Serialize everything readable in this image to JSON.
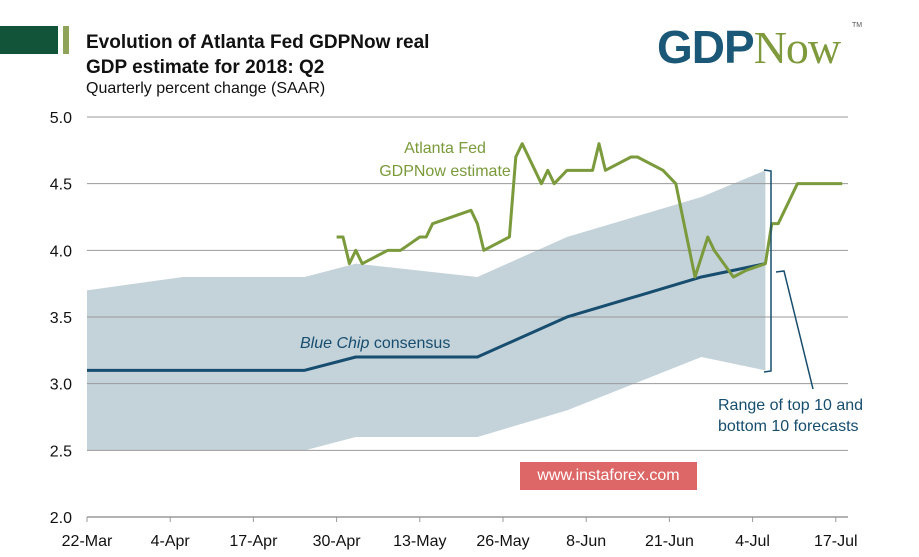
{
  "header": {
    "title_line1": "Evolution of Atlanta Fed GDPNow real",
    "title_line2": "GDP estimate for 2018: Q2",
    "subtitle": "Quarterly percent change (SAAR)",
    "logo_text": "GDPNow",
    "logo_tm": "TM"
  },
  "watermark": "www.instaforex.com",
  "colors": {
    "gdpnow": "#7a9a3c",
    "bluechip": "#174d6e",
    "band": "#c4d2da",
    "grid": "#9a9a9a",
    "brand_green": "#12543a"
  },
  "chart_data": {
    "type": "line",
    "title": "Evolution of Atlanta Fed GDPNow real GDP estimate for 2018: Q2",
    "ylabel": "Quarterly percent change (SAAR)",
    "ylim": [
      2.0,
      5.0
    ],
    "yticks": [
      "2.0",
      "2.5",
      "3.0",
      "3.5",
      "4.0",
      "4.5",
      "5.0"
    ],
    "xlim": [
      "2018-03-22",
      "2018-07-19"
    ],
    "xticks": [
      {
        "date": "2018-03-22",
        "label": "22-Mar"
      },
      {
        "date": "2018-04-04",
        "label": "4-Apr"
      },
      {
        "date": "2018-04-17",
        "label": "17-Apr"
      },
      {
        "date": "2018-04-30",
        "label": "30-Apr"
      },
      {
        "date": "2018-05-13",
        "label": "13-May"
      },
      {
        "date": "2018-05-26",
        "label": "26-May"
      },
      {
        "date": "2018-06-08",
        "label": "8-Jun"
      },
      {
        "date": "2018-06-21",
        "label": "21-Jun"
      },
      {
        "date": "2018-07-04",
        "label": "4-Jul"
      },
      {
        "date": "2018-07-17",
        "label": "17-Jul"
      }
    ],
    "grid": true,
    "series": [
      {
        "name": "Atlanta Fed GDPNow estimate",
        "points": [
          [
            "2018-04-30",
            4.1
          ],
          [
            "2018-05-01",
            4.1
          ],
          [
            "2018-05-02",
            3.9
          ],
          [
            "2018-05-03",
            4.0
          ],
          [
            "2018-05-04",
            3.9
          ],
          [
            "2018-05-08",
            4.0
          ],
          [
            "2018-05-10",
            4.0
          ],
          [
            "2018-05-13",
            4.1
          ],
          [
            "2018-05-14",
            4.1
          ],
          [
            "2018-05-15",
            4.2
          ],
          [
            "2018-05-21",
            4.3
          ],
          [
            "2018-05-22",
            4.2
          ],
          [
            "2018-05-23",
            4.0
          ],
          [
            "2018-05-27",
            4.1
          ],
          [
            "2018-05-28",
            4.7
          ],
          [
            "2018-05-29",
            4.8
          ],
          [
            "2018-06-01",
            4.5
          ],
          [
            "2018-06-02",
            4.6
          ],
          [
            "2018-06-03",
            4.5
          ],
          [
            "2018-06-05",
            4.6
          ],
          [
            "2018-06-09",
            4.6
          ],
          [
            "2018-06-10",
            4.8
          ],
          [
            "2018-06-11",
            4.6
          ],
          [
            "2018-06-15",
            4.7
          ],
          [
            "2018-06-16",
            4.7
          ],
          [
            "2018-06-20",
            4.6
          ],
          [
            "2018-06-22",
            4.5
          ],
          [
            "2018-06-25",
            3.8
          ],
          [
            "2018-06-27",
            4.1
          ],
          [
            "2018-06-28",
            4.0
          ],
          [
            "2018-07-01",
            3.8
          ],
          [
            "2018-07-03",
            3.85
          ],
          [
            "2018-07-06",
            3.9
          ],
          [
            "2018-07-07",
            4.2
          ],
          [
            "2018-07-08",
            4.2
          ],
          [
            "2018-07-11",
            4.5
          ],
          [
            "2018-07-13",
            4.5
          ],
          [
            "2018-07-18",
            4.5
          ]
        ]
      },
      {
        "name": "Blue Chip consensus",
        "points": [
          [
            "2018-03-22",
            3.1
          ],
          [
            "2018-04-25",
            3.1
          ],
          [
            "2018-05-03",
            3.2
          ],
          [
            "2018-05-22",
            3.2
          ],
          [
            "2018-06-05",
            3.5
          ],
          [
            "2018-06-26",
            3.8
          ],
          [
            "2018-07-06",
            3.9
          ]
        ]
      },
      {
        "name": "Range of top 10 and bottom 10 forecasts",
        "type": "area",
        "upper": [
          [
            "2018-03-22",
            3.7
          ],
          [
            "2018-04-06",
            3.8
          ],
          [
            "2018-04-25",
            3.8
          ],
          [
            "2018-05-03",
            3.9
          ],
          [
            "2018-05-22",
            3.8
          ],
          [
            "2018-06-05",
            4.1
          ],
          [
            "2018-06-26",
            4.4
          ],
          [
            "2018-07-06",
            4.6
          ]
        ],
        "lower": [
          [
            "2018-03-22",
            2.5
          ],
          [
            "2018-04-25",
            2.5
          ],
          [
            "2018-05-03",
            2.6
          ],
          [
            "2018-05-22",
            2.6
          ],
          [
            "2018-06-05",
            2.8
          ],
          [
            "2018-06-26",
            3.2
          ],
          [
            "2018-07-06",
            3.1
          ]
        ]
      }
    ],
    "annotations": {
      "gdpnow_line1": "Atlanta Fed",
      "gdpnow_line2": "GDPNow estimate",
      "bluechip_italic": "Blue Chip",
      "bluechip_rest": " consensus",
      "range_line1": "Range of top 10 and",
      "range_line2": "bottom 10 forecasts"
    }
  }
}
